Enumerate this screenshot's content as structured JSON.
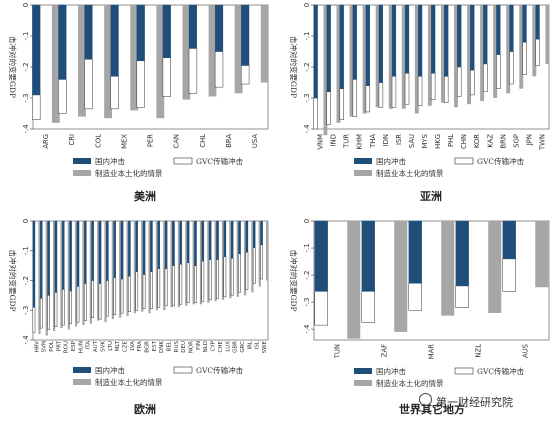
{
  "colors": {
    "domestic": "#1f4e79",
    "gvc": "#ffffff",
    "localize": "#a6a6a6",
    "stroke": "#333333"
  },
  "legend": {
    "domestic": "国内冲击",
    "gvc": "GVC传输冲击",
    "localize": "制造业本土化的情景"
  },
  "watermark": "第一财经研究院",
  "chart_data": [
    {
      "type": "bar",
      "title": "美洲",
      "ylabel": "击冲对的变要GDP",
      "ylim": [
        -4,
        0
      ],
      "yticks": [
        0,
        -1,
        -2,
        -3,
        -4
      ],
      "ytick_labels": [
        "0",
        "-.1",
        "-.2",
        "-.3",
        "-.4"
      ],
      "categories": [
        "ARG",
        "CRI",
        "COL",
        "MEX",
        "PER",
        "CAN",
        "CHL",
        "BRA",
        "USA"
      ],
      "series": [
        {
          "key": "domestic",
          "values": [
            -2.9,
            -2.4,
            -1.75,
            -2.3,
            -1.8,
            -1.7,
            -1.4,
            -1.5,
            -1.95
          ]
        },
        {
          "key": "gvc",
          "values": [
            -3.7,
            -3.5,
            -3.35,
            -3.35,
            -3.3,
            -2.95,
            -2.85,
            -2.65,
            -2.55
          ]
        },
        {
          "key": "localize",
          "values": [
            -3.8,
            -3.6,
            -3.65,
            -3.4,
            -3.65,
            -3.05,
            -2.95,
            -2.85,
            -2.5
          ]
        }
      ]
    },
    {
      "type": "bar",
      "title": "亚洲",
      "ylabel": "击冲对的变要GDP",
      "ylim": [
        -4,
        0
      ],
      "yticks": [
        0,
        -1,
        -2,
        -3,
        -4
      ],
      "ytick_labels": [
        "0",
        "-.1",
        "-.2",
        "-.3",
        "-.4"
      ],
      "categories": [
        "VNM",
        "IND",
        "TUR",
        "KHM",
        "THA",
        "IDN",
        "ISR",
        "SAU",
        "MYS",
        "HKG",
        "PHL",
        "CHN",
        "KOR",
        "KAZ",
        "BRN",
        "SGP",
        "JPN",
        "TWN"
      ],
      "series": [
        {
          "key": "domestic",
          "values": [
            -3.0,
            -2.8,
            -2.7,
            -2.4,
            -2.6,
            -2.5,
            -2.3,
            -2.2,
            -2.3,
            -2.2,
            -2.3,
            -2.0,
            -2.1,
            -1.9,
            -1.6,
            -1.5,
            -1.2,
            -1.1
          ]
        },
        {
          "key": "gvc",
          "values": [
            -4.0,
            -3.85,
            -3.7,
            -3.6,
            -3.45,
            -3.3,
            -3.3,
            -3.2,
            -3.25,
            -3.05,
            -3.15,
            -2.95,
            -2.9,
            -2.8,
            -2.7,
            -2.55,
            -2.25,
            -1.95
          ]
        },
        {
          "key": "localize",
          "values": [
            -4.2,
            -3.8,
            -3.6,
            -3.5,
            -3.3,
            -3.35,
            -3.35,
            -3.5,
            -3.25,
            -3.15,
            -3.3,
            -3.2,
            -3.1,
            -3.0,
            -2.85,
            -2.7,
            -2.3,
            -1.9
          ]
        }
      ]
    },
    {
      "type": "bar",
      "title": "欧洲",
      "ylabel": "击冲对的变要GDP",
      "ylim": [
        -4,
        0
      ],
      "yticks": [
        0,
        -1,
        -2,
        -3,
        -4
      ],
      "ytick_labels": [
        "0",
        "-.1",
        "-.2",
        "-.3",
        "-.4"
      ],
      "categories": [
        "HRV",
        "SVN",
        "POL",
        "PRT",
        "ROU",
        "ESP",
        "HUN",
        "ITA",
        "AUT",
        "SVK",
        "LTU",
        "MLT",
        "CZE",
        "LVA",
        "FRA",
        "BGR",
        "EST",
        "DNK",
        "BEL",
        "RUS",
        "DEU",
        "NOR",
        "FIN",
        "NLD",
        "CYP",
        "CHE",
        "LUX",
        "GBR",
        "GRC",
        "IRL",
        "ISL",
        "SWE"
      ],
      "series": [
        {
          "key": "domestic",
          "values": [
            -2.9,
            -2.6,
            -2.5,
            -2.4,
            -2.3,
            -2.35,
            -2.2,
            -2.1,
            -2.0,
            -2.1,
            -2.0,
            -1.9,
            -1.95,
            -1.85,
            -1.7,
            -1.8,
            -1.7,
            -1.6,
            -1.6,
            -1.5,
            -1.45,
            -1.4,
            -1.5,
            -1.35,
            -1.3,
            -1.3,
            -1.2,
            -1.25,
            -1.1,
            -1.05,
            -0.9,
            -0.8
          ]
        },
        {
          "key": "gvc",
          "values": [
            -3.75,
            -3.6,
            -3.65,
            -3.55,
            -3.5,
            -3.45,
            -3.4,
            -3.35,
            -3.25,
            -3.3,
            -3.2,
            -3.15,
            -3.1,
            -3.05,
            -3.0,
            -2.95,
            -2.95,
            -2.9,
            -2.85,
            -2.85,
            -2.8,
            -2.75,
            -2.75,
            -2.7,
            -2.65,
            -2.6,
            -2.55,
            -2.5,
            -2.4,
            -2.3,
            -2.1,
            -1.95
          ]
        },
        {
          "key": "localize",
          "values": [
            -3.8,
            -3.85,
            -3.7,
            -3.6,
            -3.65,
            -3.55,
            -3.5,
            -3.45,
            -3.35,
            -3.4,
            -3.3,
            -3.25,
            -3.2,
            -3.1,
            -3.05,
            -3.1,
            -3.0,
            -3.0,
            -2.9,
            -2.9,
            -2.85,
            -2.8,
            -2.8,
            -2.75,
            -2.7,
            -2.65,
            -2.6,
            -2.55,
            -2.5,
            -2.4,
            -2.2,
            -2.0
          ]
        }
      ]
    },
    {
      "type": "bar",
      "title": "世界其它地方",
      "ylabel": "击冲对的变要GDP",
      "ylim": [
        -4.4,
        0
      ],
      "yticks": [
        0,
        -1,
        -2,
        -3,
        -4
      ],
      "ytick_labels": [
        "0",
        "-.1",
        "-.2",
        "-.3",
        "-.4"
      ],
      "categories": [
        "TUN",
        "ZAF",
        "MAR",
        "NZL",
        "AUS"
      ],
      "series": [
        {
          "key": "domestic",
          "values": [
            -2.6,
            -2.6,
            -2.3,
            -2.4,
            -1.4
          ]
        },
        {
          "key": "gvc",
          "values": [
            -3.85,
            -3.75,
            -3.3,
            -3.2,
            -2.6
          ]
        },
        {
          "key": "localize",
          "values": [
            -4.35,
            -4.1,
            -3.5,
            -3.4,
            -2.45
          ]
        }
      ]
    }
  ]
}
